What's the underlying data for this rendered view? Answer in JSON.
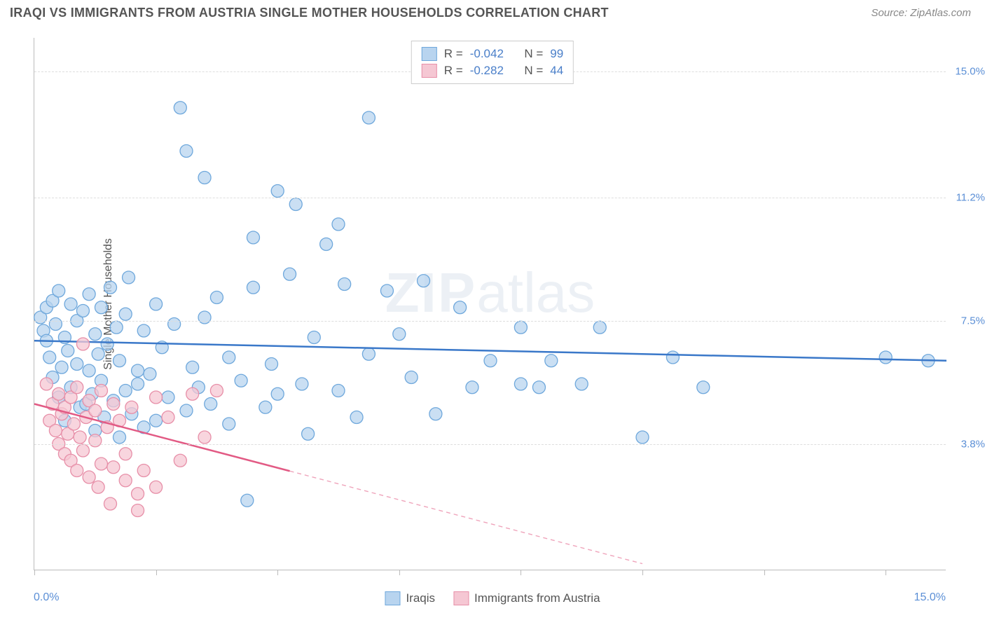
{
  "title": "IRAQI VS IMMIGRANTS FROM AUSTRIA SINGLE MOTHER HOUSEHOLDS CORRELATION CHART",
  "source": "Source: ZipAtlas.com",
  "watermark_a": "ZIP",
  "watermark_b": "atlas",
  "chart": {
    "type": "scatter-with-regression",
    "ylabel": "Single Mother Households",
    "xlim": [
      0.0,
      15.0
    ],
    "ylim": [
      0.0,
      16.0
    ],
    "y_gridlines": [
      3.8,
      7.5,
      11.2,
      15.0
    ],
    "y_tick_labels": [
      "3.8%",
      "7.5%",
      "11.2%",
      "15.0%"
    ],
    "x_ticks": [
      0,
      2,
      4,
      6,
      8,
      10,
      12,
      14
    ],
    "x_axis_left": "0.0%",
    "x_axis_right": "15.0%",
    "background_color": "#ffffff",
    "grid_color": "#dddddd",
    "axis_color": "#bbbbbb",
    "series": [
      {
        "key": "iraqis",
        "label": "Iraqis",
        "fill": "#b8d4ef",
        "stroke": "#6fa8dc",
        "line_color": "#3a78c9",
        "marker_radius": 9,
        "R": "-0.042",
        "N": "99",
        "regression": {
          "x1": 0.0,
          "y1": 6.9,
          "x2": 15.0,
          "y2": 6.3,
          "solid_to_x": 15.0
        },
        "points": [
          [
            0.1,
            7.6
          ],
          [
            0.15,
            7.2
          ],
          [
            0.2,
            6.9
          ],
          [
            0.2,
            7.9
          ],
          [
            0.25,
            6.4
          ],
          [
            0.3,
            8.1
          ],
          [
            0.3,
            5.8
          ],
          [
            0.35,
            7.4
          ],
          [
            0.4,
            5.2
          ],
          [
            0.4,
            8.4
          ],
          [
            0.45,
            6.1
          ],
          [
            0.5,
            7.0
          ],
          [
            0.5,
            4.5
          ],
          [
            0.55,
            6.6
          ],
          [
            0.6,
            8.0
          ],
          [
            0.6,
            5.5
          ],
          [
            0.7,
            7.5
          ],
          [
            0.7,
            6.2
          ],
          [
            0.75,
            4.9
          ],
          [
            0.8,
            7.8
          ],
          [
            0.85,
            5.0
          ],
          [
            0.9,
            8.3
          ],
          [
            0.9,
            6.0
          ],
          [
            0.95,
            5.3
          ],
          [
            1.0,
            7.1
          ],
          [
            1.0,
            4.2
          ],
          [
            1.05,
            6.5
          ],
          [
            1.1,
            7.9
          ],
          [
            1.1,
            5.7
          ],
          [
            1.15,
            4.6
          ],
          [
            1.2,
            6.8
          ],
          [
            1.25,
            8.5
          ],
          [
            1.3,
            5.1
          ],
          [
            1.35,
            7.3
          ],
          [
            1.4,
            4.0
          ],
          [
            1.4,
            6.3
          ],
          [
            1.5,
            5.4
          ],
          [
            1.5,
            7.7
          ],
          [
            1.55,
            8.8
          ],
          [
            1.6,
            4.7
          ],
          [
            1.7,
            6.0
          ],
          [
            1.7,
            5.6
          ],
          [
            1.8,
            7.2
          ],
          [
            1.8,
            4.3
          ],
          [
            1.9,
            5.9
          ],
          [
            2.0,
            8.0
          ],
          [
            2.0,
            4.5
          ],
          [
            2.1,
            6.7
          ],
          [
            2.2,
            5.2
          ],
          [
            2.3,
            7.4
          ],
          [
            2.4,
            13.9
          ],
          [
            2.5,
            4.8
          ],
          [
            2.5,
            12.6
          ],
          [
            2.6,
            6.1
          ],
          [
            2.7,
            5.5
          ],
          [
            2.8,
            11.8
          ],
          [
            2.8,
            7.6
          ],
          [
            2.9,
            5.0
          ],
          [
            3.0,
            8.2
          ],
          [
            3.2,
            4.4
          ],
          [
            3.2,
            6.4
          ],
          [
            3.4,
            5.7
          ],
          [
            3.5,
            2.1
          ],
          [
            3.6,
            10.0
          ],
          [
            3.6,
            8.5
          ],
          [
            3.8,
            4.9
          ],
          [
            3.9,
            6.2
          ],
          [
            4.0,
            11.4
          ],
          [
            4.0,
            5.3
          ],
          [
            4.2,
            8.9
          ],
          [
            4.3,
            11.0
          ],
          [
            4.4,
            5.6
          ],
          [
            4.5,
            4.1
          ],
          [
            4.6,
            7.0
          ],
          [
            4.8,
            9.8
          ],
          [
            5.0,
            10.4
          ],
          [
            5.0,
            5.4
          ],
          [
            5.1,
            8.6
          ],
          [
            5.3,
            4.6
          ],
          [
            5.5,
            6.5
          ],
          [
            5.5,
            13.6
          ],
          [
            5.8,
            8.4
          ],
          [
            6.0,
            7.1
          ],
          [
            6.2,
            5.8
          ],
          [
            6.4,
            8.7
          ],
          [
            6.6,
            4.7
          ],
          [
            7.0,
            7.9
          ],
          [
            7.2,
            5.5
          ],
          [
            7.5,
            6.3
          ],
          [
            8.0,
            5.6
          ],
          [
            8.0,
            7.3
          ],
          [
            8.3,
            5.5
          ],
          [
            8.5,
            6.3
          ],
          [
            9.0,
            5.6
          ],
          [
            9.3,
            7.3
          ],
          [
            10.0,
            4.0
          ],
          [
            10.5,
            6.4
          ],
          [
            11.0,
            5.5
          ],
          [
            14.0,
            6.4
          ],
          [
            14.7,
            6.3
          ]
        ]
      },
      {
        "key": "austria",
        "label": "Immigrants from Austria",
        "fill": "#f5c7d3",
        "stroke": "#e78fa8",
        "line_color": "#e25a84",
        "marker_radius": 9,
        "R": "-0.282",
        "N": "44",
        "regression": {
          "x1": 0.0,
          "y1": 5.0,
          "x2": 10.0,
          "y2": 0.2,
          "solid_to_x": 4.2
        },
        "points": [
          [
            0.2,
            5.6
          ],
          [
            0.25,
            4.5
          ],
          [
            0.3,
            5.0
          ],
          [
            0.35,
            4.2
          ],
          [
            0.4,
            3.8
          ],
          [
            0.4,
            5.3
          ],
          [
            0.45,
            4.7
          ],
          [
            0.5,
            3.5
          ],
          [
            0.5,
            4.9
          ],
          [
            0.55,
            4.1
          ],
          [
            0.6,
            3.3
          ],
          [
            0.6,
            5.2
          ],
          [
            0.65,
            4.4
          ],
          [
            0.7,
            3.0
          ],
          [
            0.7,
            5.5
          ],
          [
            0.75,
            4.0
          ],
          [
            0.8,
            6.8
          ],
          [
            0.8,
            3.6
          ],
          [
            0.85,
            4.6
          ],
          [
            0.9,
            2.8
          ],
          [
            0.9,
            5.1
          ],
          [
            1.0,
            3.9
          ],
          [
            1.0,
            4.8
          ],
          [
            1.05,
            2.5
          ],
          [
            1.1,
            5.4
          ],
          [
            1.1,
            3.2
          ],
          [
            1.2,
            4.3
          ],
          [
            1.25,
            2.0
          ],
          [
            1.3,
            5.0
          ],
          [
            1.3,
            3.1
          ],
          [
            1.4,
            4.5
          ],
          [
            1.5,
            2.7
          ],
          [
            1.5,
            3.5
          ],
          [
            1.6,
            4.9
          ],
          [
            1.7,
            2.3
          ],
          [
            1.7,
            1.8
          ],
          [
            1.8,
            3.0
          ],
          [
            2.0,
            5.2
          ],
          [
            2.0,
            2.5
          ],
          [
            2.2,
            4.6
          ],
          [
            2.4,
            3.3
          ],
          [
            2.6,
            5.3
          ],
          [
            2.8,
            4.0
          ],
          [
            3.0,
            5.4
          ]
        ]
      }
    ],
    "stats_prefix_R": "R =",
    "stats_prefix_N": "N ="
  }
}
